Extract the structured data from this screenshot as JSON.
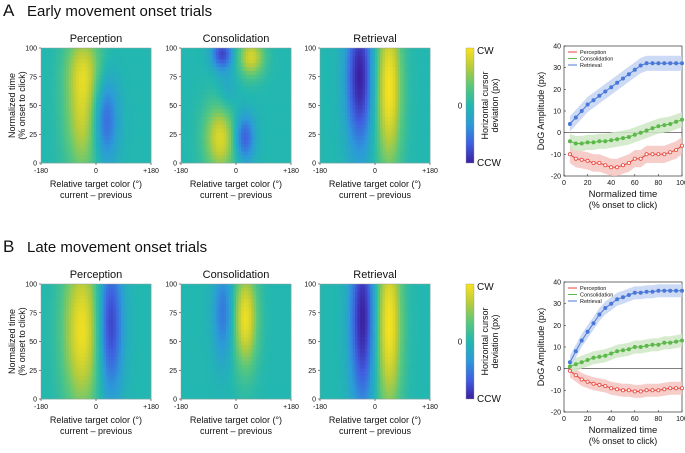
{
  "panels": [
    {
      "letter": "A",
      "title": "Early movement onset trials",
      "heatmap_titles": [
        "Perception",
        "Consolidation",
        "Retrieval"
      ],
      "heatmap_ylabel": [
        "Normalized time",
        "(% onset to click)"
      ],
      "heatmap_yticks": [
        "0",
        "25",
        "50",
        "75",
        "100"
      ],
      "heatmap_xticks": [
        "-180",
        "0",
        "+180"
      ],
      "heatmap_xlabel": [
        "Relative target color (°)",
        "current – previous"
      ],
      "colorbar": {
        "top": "CW",
        "mid": "0",
        "bottom": "CCW",
        "label": [
          "Horizontal cursor",
          "deviation (px)"
        ]
      },
      "line_chart": {
        "ylabel": "DoG Amplitude (px)",
        "xlabel": [
          "Normalized time",
          "(% onset to click)"
        ],
        "yticks": [
          "-20",
          "-10",
          "0",
          "10",
          "20",
          "30",
          "40"
        ],
        "xticks": [
          "0",
          "20",
          "40",
          "60",
          "80",
          "100"
        ],
        "legend": [
          "Perception",
          "Consolidation",
          "Retrieval"
        ]
      }
    },
    {
      "letter": "B",
      "title": "Late movement onset trials",
      "heatmap_titles": [
        "Perception",
        "Consolidation",
        "Retrieval"
      ],
      "heatmap_ylabel": [
        "Normalized time",
        "(% onset to click)"
      ],
      "heatmap_yticks": [
        "0",
        "25",
        "50",
        "75",
        "100"
      ],
      "heatmap_xticks": [
        "-180",
        "0",
        "+180"
      ],
      "heatmap_xlabel": [
        "Relative target color (°)",
        "current – previous"
      ],
      "colorbar": {
        "top": "CW",
        "mid": "0",
        "bottom": "CCW",
        "label": [
          "Horizontal cursor",
          "deviation (px)"
        ]
      },
      "line_chart": {
        "ylabel": "DoG Amplitude (px)",
        "xlabel": [
          "Normalized time",
          "(% onset to click)"
        ],
        "yticks": [
          "-20",
          "-10",
          "0",
          "10",
          "20",
          "30",
          "40"
        ],
        "xticks": [
          "0",
          "20",
          "40",
          "60",
          "80",
          "100"
        ],
        "legend": [
          "Perception",
          "Consolidation",
          "Retrieval"
        ]
      }
    }
  ],
  "colors": {
    "perception": "#e8463c",
    "consolidation": "#5cb84a",
    "retrieval": "#4a78d8",
    "perception_band": "#f5c4c0",
    "consolidation_band": "#cfe8c6",
    "retrieval_band": "#c3d3f3",
    "colormap": [
      "#3b1fa0",
      "#3f5fe0",
      "#2c9ad8",
      "#22b7b0",
      "#59c77c",
      "#b8cc3a",
      "#f9e21e"
    ]
  },
  "chart_data": [
    {
      "panel": "A",
      "type": "heatmap",
      "title": "Perception",
      "xlabel": "Relative target color (°) current – previous",
      "ylabel": "Normalized time (% onset to click)",
      "xlim": [
        -180,
        180
      ],
      "ylim": [
        0,
        100
      ],
      "blobs": [
        {
          "x": -35,
          "y": 45,
          "sx": 45,
          "sy": 40,
          "amp": 0.85
        },
        {
          "x": 25,
          "y": 38,
          "sx": 32,
          "sy": 28,
          "amp": -0.85
        },
        {
          "x": -45,
          "y": 85,
          "sx": 40,
          "sy": 20,
          "amp": 0.35
        }
      ]
    },
    {
      "panel": "A",
      "type": "heatmap",
      "title": "Consolidation",
      "xlabel": "Relative target color (°) current – previous",
      "ylabel": "Normalized time (% onset to click)",
      "xlim": [
        -180,
        180
      ],
      "ylim": [
        0,
        100
      ],
      "blobs": [
        {
          "x": -50,
          "y": 22,
          "sx": 38,
          "sy": 22,
          "amp": 0.85
        },
        {
          "x": 25,
          "y": 22,
          "sx": 25,
          "sy": 15,
          "amp": -0.75
        },
        {
          "x": 50,
          "y": 92,
          "sx": 30,
          "sy": 12,
          "amp": 0.8
        },
        {
          "x": -45,
          "y": 95,
          "sx": 25,
          "sy": 10,
          "amp": -0.8
        },
        {
          "x": -30,
          "y": 60,
          "sx": 25,
          "sy": 15,
          "amp": -0.25
        }
      ]
    },
    {
      "panel": "A",
      "type": "heatmap",
      "title": "Retrieval",
      "xlabel": "Relative target color (°) current – previous",
      "ylabel": "Normalized time (% onset to click)",
      "xlim": [
        -180,
        180
      ],
      "ylim": [
        0,
        100
      ],
      "blobs": [
        {
          "x": -50,
          "y": 75,
          "sx": 32,
          "sy": 45,
          "amp": -1.0
        },
        {
          "x": 45,
          "y": 65,
          "sx": 30,
          "sy": 50,
          "amp": 1.0
        }
      ]
    },
    {
      "panel": "A",
      "type": "line",
      "xlabel": "Normalized time (% onset to click)",
      "ylabel": "DoG Amplitude (px)",
      "xlim": [
        0,
        100
      ],
      "ylim": [
        -20,
        40
      ],
      "x": [
        5,
        10,
        15,
        20,
        25,
        30,
        35,
        40,
        45,
        50,
        55,
        60,
        65,
        70,
        75,
        80,
        85,
        90,
        95,
        100
      ],
      "series": [
        {
          "name": "Perception",
          "values": [
            -10,
            -12,
            -12.5,
            -13,
            -14,
            -14,
            -15,
            -16,
            -16,
            -15,
            -14,
            -12,
            -12,
            -10,
            -10,
            -10,
            -10,
            -9,
            -8,
            -6
          ],
          "ci": 4
        },
        {
          "name": "Consolidation",
          "values": [
            -4,
            -5,
            -5,
            -4.5,
            -4.5,
            -4,
            -4,
            -3.5,
            -3,
            -2.5,
            -2,
            -1,
            0,
            1,
            2,
            3,
            3.5,
            4,
            5,
            6
          ],
          "ci": 3.5
        },
        {
          "name": "Retrieval",
          "values": [
            4,
            7,
            10,
            13,
            15,
            17,
            19,
            21,
            23,
            25,
            27,
            29,
            31,
            32,
            32,
            32,
            32,
            32,
            32,
            32
          ],
          "ci": 3.5
        }
      ]
    },
    {
      "panel": "B",
      "type": "heatmap",
      "title": "Perception",
      "xlabel": "Relative target color (°) current – previous",
      "ylabel": "Normalized time (% onset to click)",
      "xlim": [
        -180,
        180
      ],
      "ylim": [
        0,
        100
      ],
      "blobs": [
        {
          "x": -45,
          "y": 60,
          "sx": 45,
          "sy": 50,
          "amp": 0.95
        },
        {
          "x": 45,
          "y": 65,
          "sx": 30,
          "sy": 45,
          "amp": -0.9
        }
      ]
    },
    {
      "panel": "B",
      "type": "heatmap",
      "title": "Consolidation",
      "xlabel": "Relative target color (°) current – previous",
      "ylabel": "Normalized time (% onset to click)",
      "xlim": [
        -180,
        180
      ],
      "ylim": [
        0,
        100
      ],
      "blobs": [
        {
          "x": 30,
          "y": 70,
          "sx": 28,
          "sy": 30,
          "amp": 0.95
        },
        {
          "x": -40,
          "y": 75,
          "sx": 25,
          "sy": 30,
          "amp": -0.55
        }
      ]
    },
    {
      "panel": "B",
      "type": "heatmap",
      "title": "Retrieval",
      "xlabel": "Relative target color (°) current – previous",
      "ylabel": "Normalized time (% onset to click)",
      "xlim": [
        -180,
        180
      ],
      "ylim": [
        0,
        100
      ],
      "blobs": [
        {
          "x": -40,
          "y": 70,
          "sx": 30,
          "sy": 55,
          "amp": -1.0
        },
        {
          "x": 45,
          "y": 65,
          "sx": 30,
          "sy": 55,
          "amp": 1.0
        }
      ]
    },
    {
      "panel": "B",
      "type": "line",
      "xlabel": "Normalized time (% onset to click)",
      "ylabel": "DoG Amplitude (px)",
      "xlim": [
        0,
        100
      ],
      "ylim": [
        -20,
        40
      ],
      "x": [
        5,
        10,
        15,
        20,
        25,
        30,
        35,
        40,
        45,
        50,
        55,
        60,
        65,
        70,
        75,
        80,
        85,
        90,
        95,
        100
      ],
      "series": [
        {
          "name": "Perception",
          "values": [
            -1,
            -3,
            -5,
            -6,
            -7,
            -7.5,
            -8,
            -9,
            -9.5,
            -10,
            -10,
            -10.5,
            -10.5,
            -10,
            -10,
            -10,
            -9.5,
            -9,
            -9,
            -9
          ],
          "ci": 3
        },
        {
          "name": "Consolidation",
          "values": [
            1,
            2,
            3,
            4,
            5,
            5.5,
            6,
            7,
            8,
            8.5,
            9,
            10,
            10,
            10.5,
            11,
            11,
            12,
            12,
            12.5,
            13
          ],
          "ci": 3
        },
        {
          "name": "Retrieval",
          "values": [
            3,
            8,
            13,
            17,
            21,
            25,
            28,
            30,
            32,
            33,
            34,
            35,
            35,
            35.5,
            35.5,
            36,
            36,
            36,
            36,
            36
          ],
          "ci": 3
        }
      ]
    }
  ]
}
